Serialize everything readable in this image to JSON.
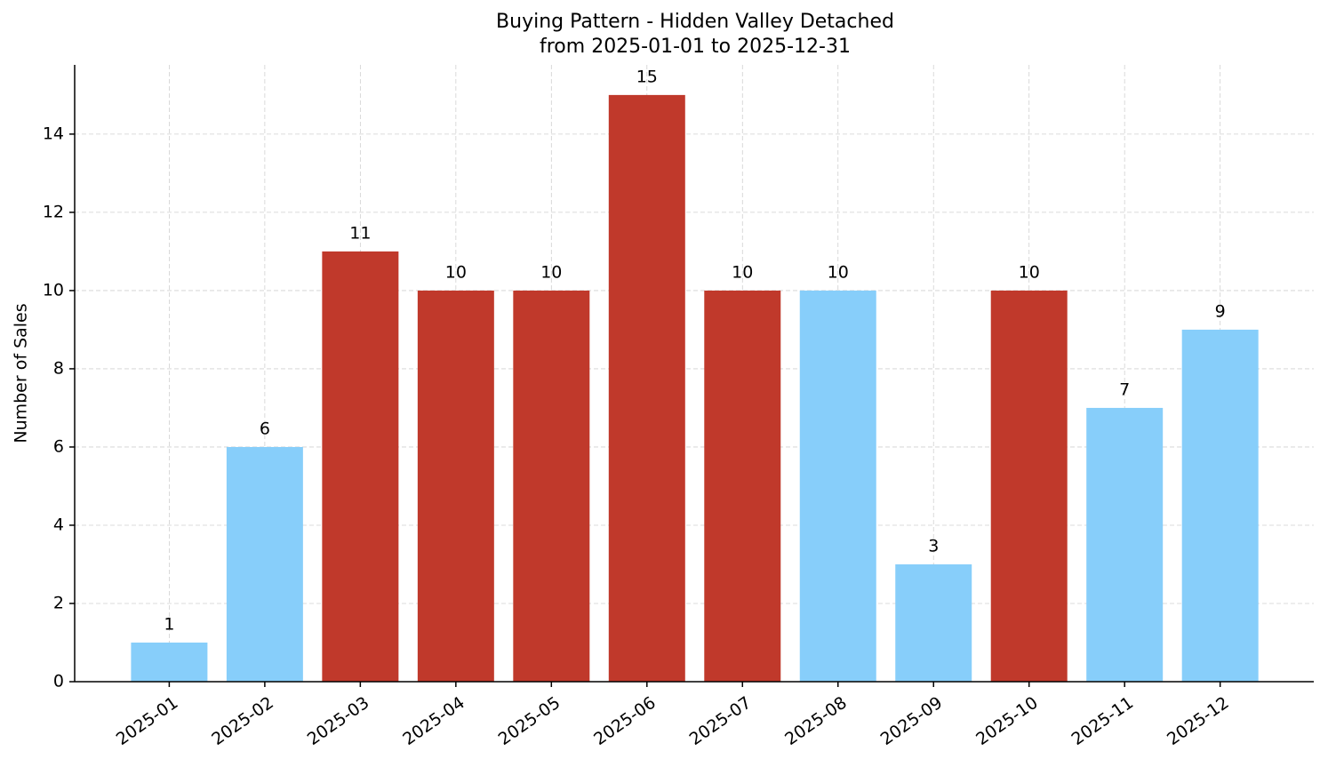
{
  "chart_data": {
    "type": "bar",
    "title": "Buying Pattern - Hidden Valley Detached",
    "subtitle": "from 2025-01-01 to 2025-12-31",
    "y_label": "Number of Sales",
    "categories": [
      "2025-01",
      "2025-02",
      "2025-03",
      "2025-04",
      "2025-05",
      "2025-06",
      "2025-07",
      "2025-08",
      "2025-09",
      "2025-10",
      "2025-11",
      "2025-12"
    ],
    "values": [
      1,
      6,
      11,
      10,
      10,
      15,
      10,
      10,
      3,
      10,
      7,
      9
    ],
    "colors": [
      "#87cefa",
      "#87cefa",
      "#c0392b",
      "#c0392b",
      "#c0392b",
      "#c0392b",
      "#c0392b",
      "#87cefa",
      "#87cefa",
      "#c0392b",
      "#87cefa",
      "#87cefa"
    ],
    "ylim": [
      0,
      15.77
    ],
    "yticks": [
      0,
      2,
      4,
      6,
      8,
      10,
      12,
      14
    ],
    "grid": true
  }
}
